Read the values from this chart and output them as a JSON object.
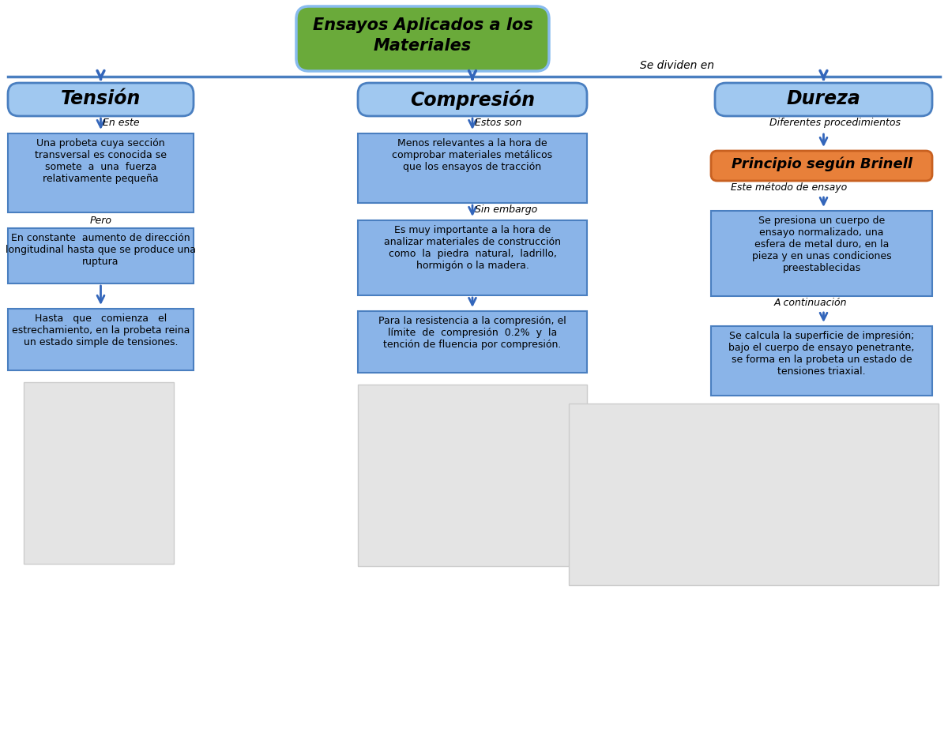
{
  "bg_color": "#ffffff",
  "title_text1": "Ensayos Aplicados a los",
  "title_text2": "Materiales",
  "title_bg": "#6aaa3a",
  "title_border": "#88bbee",
  "divides_label": "Se dividen en",
  "header_line_color": "#4a7fc0",
  "col1_header": "Tensión",
  "col2_header": "Compresión",
  "col3_header": "Dureza",
  "header_bg": "#a0c8f0",
  "header_border": "#4a7fc0",
  "box_bg": "#8ab4e8",
  "box_border": "#4a7fc0",
  "orange_bg": "#e8803a",
  "orange_border": "#c86020",
  "gray_img_bg": "#e4e4e4",
  "gray_img_border": "#cccccc",
  "arrow_color": "#3366bb",
  "col1_label1": "En este",
  "col1_label2": "Pero",
  "col1_box1_text": "Una probeta cuya sección\ntransversal es conocida se\nsomete  a  una  fuerza\nrelativamente pequeña",
  "col1_box2_text": "En constante  aumento de dirección\nlongitudinal hasta que se produce una\nruptura",
  "col1_box3_text": "Hasta   que   comienza   el\nestrechamiento, en la probeta reina\nun estado simple de tensiones.",
  "col2_label1": "Estos son",
  "col2_label2": "Sin embargo",
  "col2_box1_text": "Menos relevantes a la hora de\ncomprobar materiales metálicos\nque los ensayos de tracción",
  "col2_box2_text": "Es muy importante a la hora de\nanalizar materiales de construcción\ncomo  la  piedra  natural,  ladrillo,\nhormigón o la madera.",
  "col2_box3_text": "Para la resistencia a la compresión, el\nlímite  de  compresión  0.2%  y  la\ntención de fluencia por compresión.",
  "col3_label1": "Diferentes procedimientos",
  "col3_label2": "Este método de ensayo",
  "col3_label3": "A continuación",
  "col3_box1_title": "Principio según Brinell",
  "col3_box2_text": "Se presiona un cuerpo de\nensayo normalizado, una\nesfera de metal duro, en la\npieza y en unas condiciones\npreestablecidas",
  "col3_box3_text": "Se calcula la superficie de impresión;\nbajo el cuerpo de ensayo penetrante,\nse forma en la probeta un estado de\ntensiones triaxial."
}
